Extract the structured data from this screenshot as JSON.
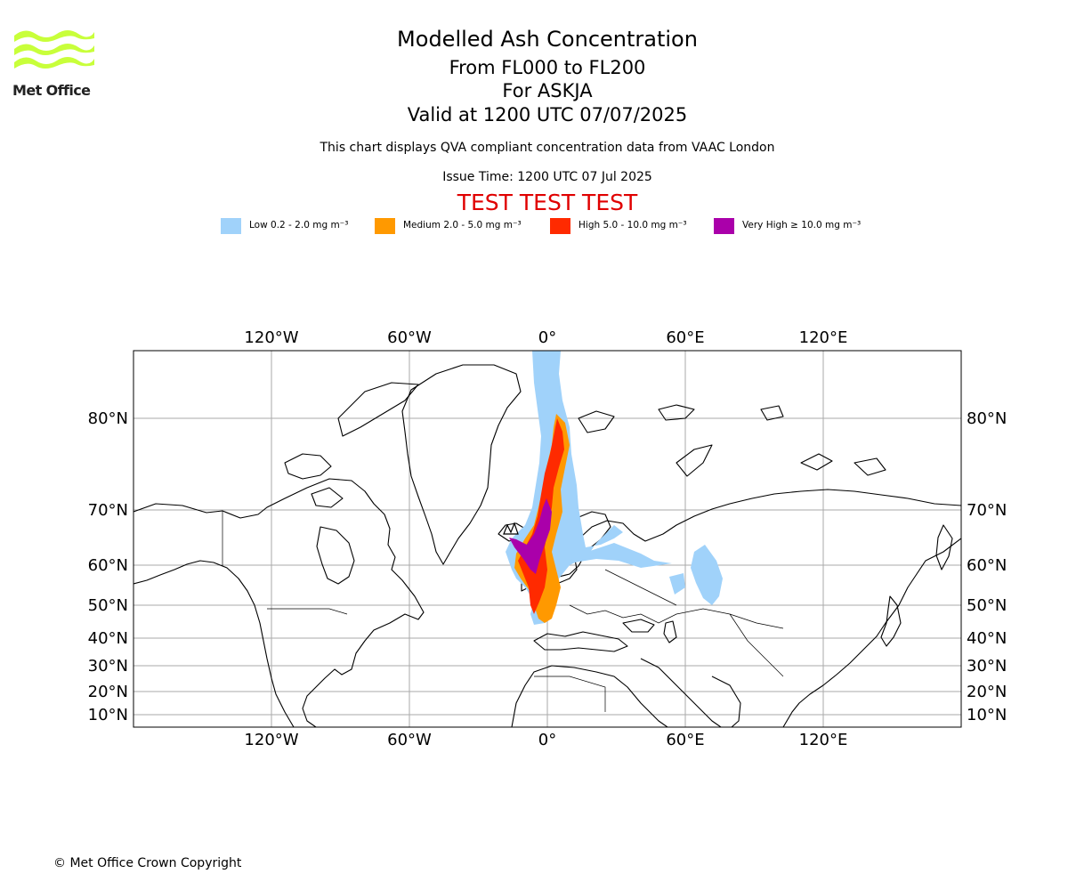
{
  "logo": {
    "text": "Met Office",
    "icon": "met-office-wave-logo",
    "color": "#c8ff3a"
  },
  "header": {
    "title": "Modelled Ash Concentration",
    "line1": "From FL000 to FL200",
    "line2": "For ASKJA",
    "line3": "Valid at 1200 UTC 07/07/2025",
    "note": "This chart displays QVA compliant concentration data from VAAC London",
    "issue_time": "Issue Time: 1200 UTC 07 Jul 2025",
    "test_banner": "TEST TEST TEST"
  },
  "legend": [
    {
      "label": "Low 0.2 - 2.0 mg m⁻³",
      "color": "#a0d2fa"
    },
    {
      "label": "Medium 2.0 - 5.0 mg m⁻³",
      "color": "#ff9900"
    },
    {
      "label": "High 5.0 - 10.0 mg m⁻³",
      "color": "#ff2a00"
    },
    {
      "label": "Very High ≥ 10.0 mg m⁻³",
      "color": "#aa00aa"
    }
  ],
  "map": {
    "projection": "mercator",
    "lon_ticks": [
      "120°W",
      "60°W",
      "0°",
      "60°E",
      "120°E"
    ],
    "lat_ticks": [
      "80°N",
      "70°N",
      "60°N",
      "50°N",
      "40°N",
      "30°N",
      "20°N",
      "10°N"
    ],
    "grid": true,
    "gridline_color": "#aaaaaa",
    "volcano": "ASKJA"
  },
  "footer": {
    "copyright": "© Met Office Crown Copyright"
  }
}
